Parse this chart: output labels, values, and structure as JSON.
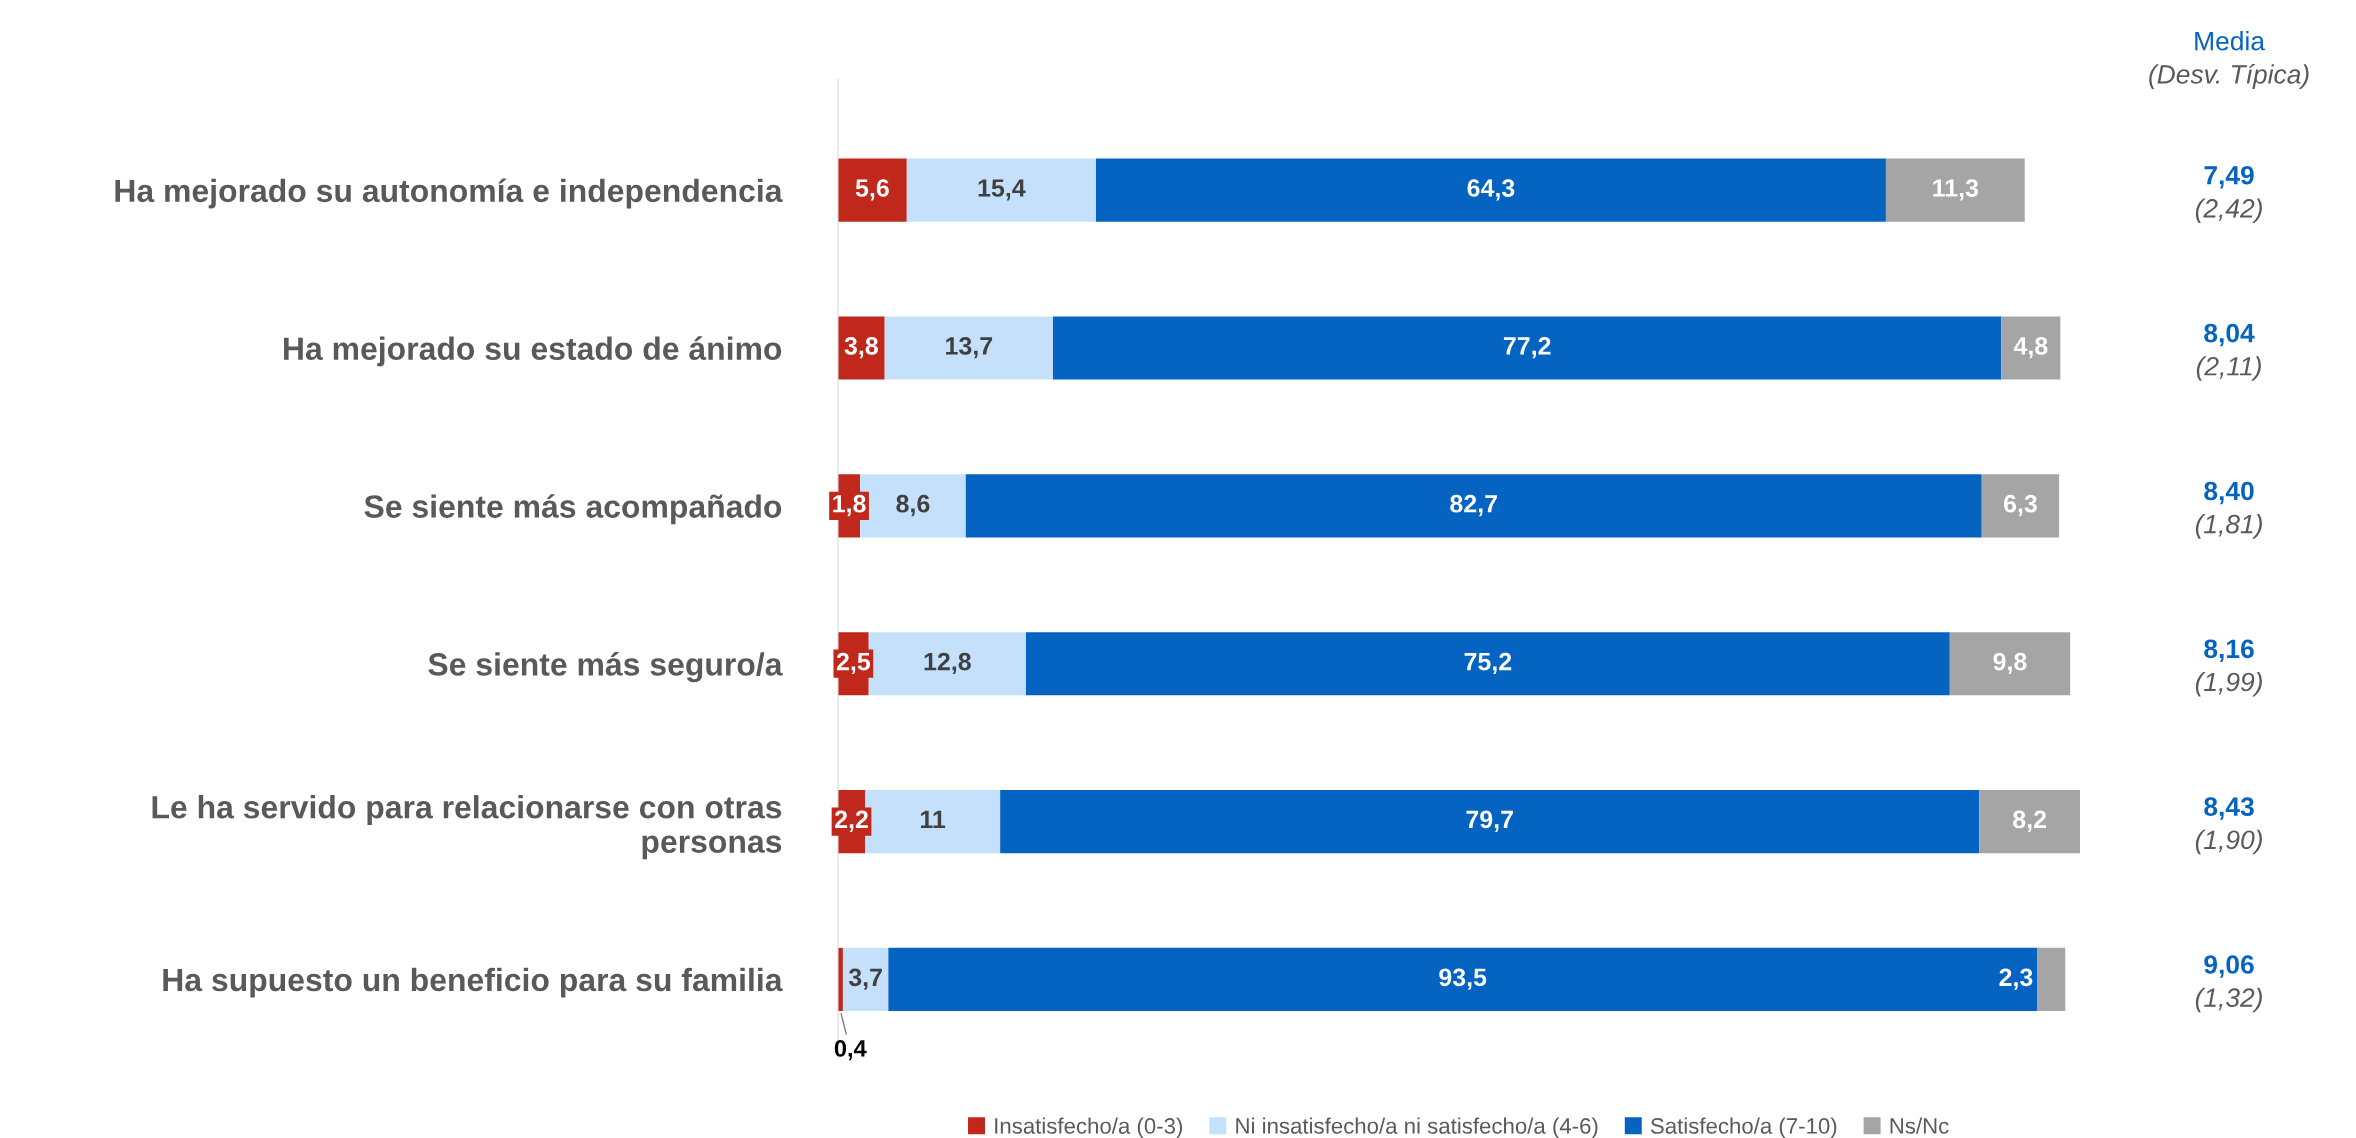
{
  "chart_data": {
    "type": "bar",
    "orientation": "horizontal",
    "stacked": true,
    "data_labels": true,
    "legend": "bottom",
    "grid": false,
    "tick_labels": "y",
    "categories": [
      "Ha mejorado su autonomía e independencia",
      "Ha mejorado su estado de ánimo",
      "Se siente más acompañado",
      "Se siente más seguro/a",
      "Le ha servido para relacionarse con otras\npersonas",
      "Ha supuesto un beneficio para su familia"
    ],
    "series": [
      {
        "name": "Insatisfecho/a (0-3)",
        "color": "#c0281b",
        "values": [
          5.6,
          3.8,
          1.8,
          2.5,
          2.2,
          0.4
        ],
        "value_labels": [
          "5,6",
          "3,8",
          "1,8",
          "2,5",
          "2,2",
          "0,4"
        ]
      },
      {
        "name": "Ni insatisfecho/a ni satisfecho/a (4-6)",
        "color": "#c5e0fb",
        "values": [
          15.4,
          13.7,
          8.6,
          12.8,
          11,
          3.7
        ],
        "value_labels": [
          "15,4",
          "13,7",
          "8,6",
          "12,8",
          "11",
          "3,7"
        ]
      },
      {
        "name": "Satisfecho/a (7-10)",
        "color": "#0563c1",
        "values": [
          64.3,
          77.2,
          82.7,
          75.2,
          79.7,
          93.5
        ],
        "value_labels": [
          "64,3",
          "77,2",
          "82,7",
          "75,2",
          "79,7",
          "93,5"
        ]
      },
      {
        "name": "Ns/Nc",
        "color": "#a5a5a5",
        "values": [
          11.3,
          4.8,
          6.3,
          9.8,
          8.2,
          2.3
        ],
        "value_labels": [
          "11,3",
          "4,8",
          "6,3",
          "9,8",
          "8,2",
          "2,3"
        ]
      }
    ],
    "annotations": [
      "Media",
      "(Desv. Típica)",
      "7,49",
      "(2,42)",
      "8,04",
      "(2,11)",
      "8,40",
      "(1,81)",
      "8,16",
      "(1,99)",
      "8,43",
      "(1,90)",
      "9,06",
      "(1,32)"
    ]
  }
}
